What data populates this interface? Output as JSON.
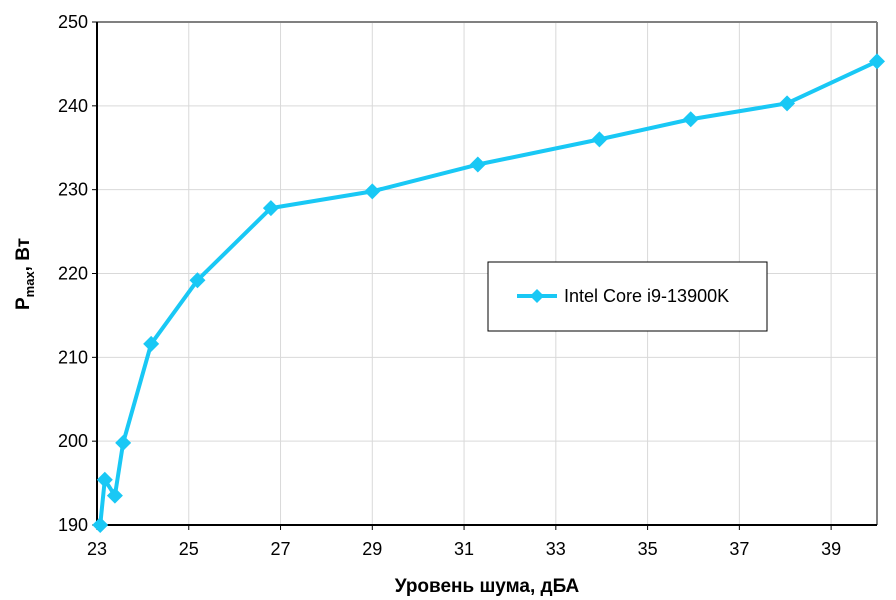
{
  "chart_data": {
    "type": "line",
    "title": "",
    "xlabel": "Уровень шума, дБА",
    "ylabel_main": "P",
    "ylabel_sub": "max",
    "ylabel_tail": ", Вт",
    "xlim": [
      23,
      40
    ],
    "ylim": [
      190,
      250
    ],
    "xticks": [
      23,
      25,
      27,
      29,
      31,
      33,
      35,
      37,
      39
    ],
    "yticks": [
      190,
      200,
      210,
      220,
      230,
      240,
      250
    ],
    "grid": true,
    "legend_position": "center-right",
    "series": [
      {
        "name": "Intel Core i9-13900K",
        "color": "#19c8f5",
        "marker": "diamond",
        "x": [
          23.07,
          23.17,
          23.39,
          23.57,
          24.18,
          25.19,
          26.79,
          29.0,
          31.3,
          33.95,
          35.94,
          38.04,
          40.0
        ],
        "y": [
          190.0,
          195.4,
          193.5,
          199.8,
          211.6,
          219.2,
          227.8,
          229.8,
          233.0,
          236.0,
          238.4,
          240.3,
          245.3
        ]
      }
    ]
  }
}
